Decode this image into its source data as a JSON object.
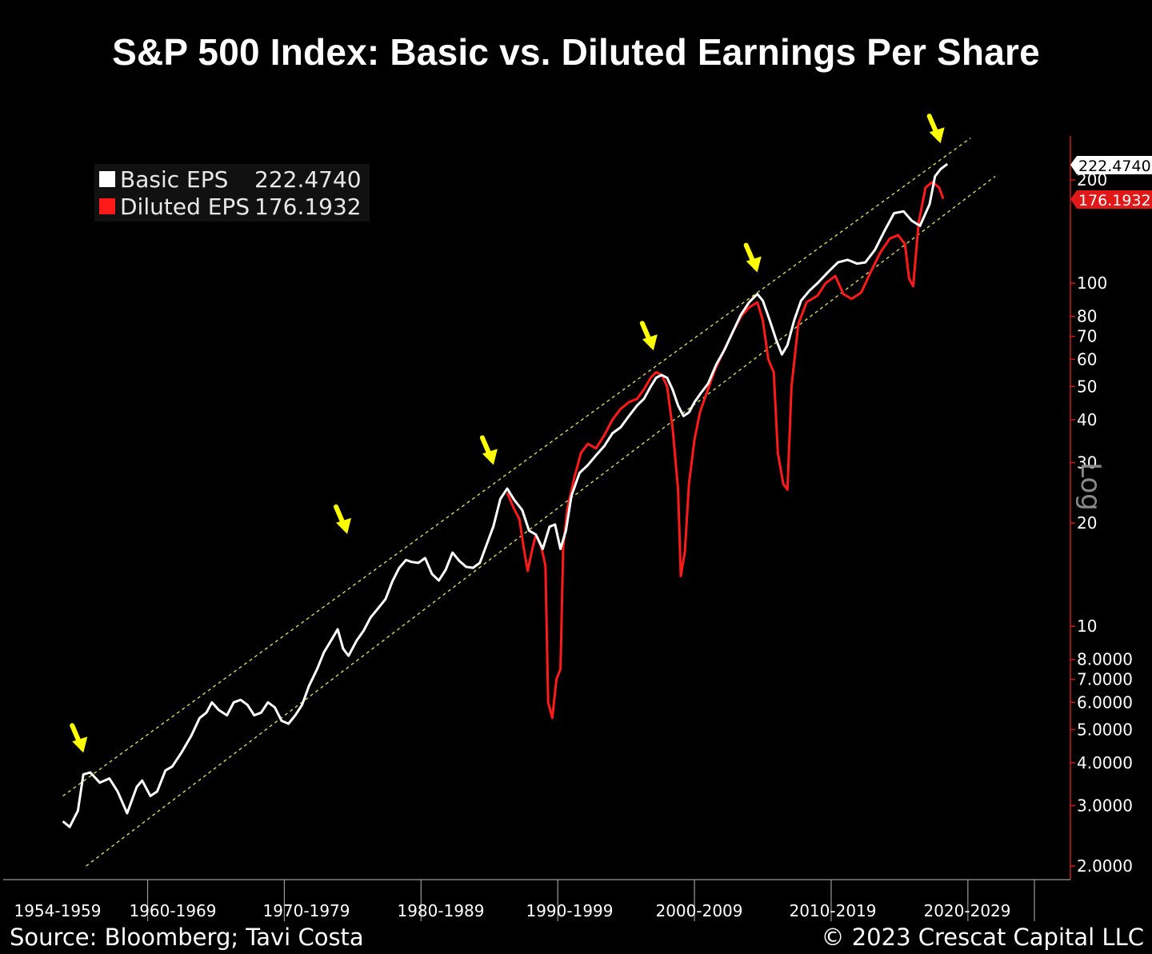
{
  "title": "S&P 500 Index: Basic vs. Diluted Earnings Per Share",
  "legend": [
    {
      "name": "Basic EPS",
      "value": "222.4740",
      "color": "#ffffff"
    },
    {
      "name": "Diluted EPS",
      "value": "176.1932",
      "color": "#ff1a1a"
    }
  ],
  "source": "Source: Bloomberg; Tavi Costa",
  "copyright": "© 2023 Crescat Capital LLC",
  "axis_scale_label": "Log",
  "last_value_tags": {
    "basic": "222.4740",
    "diluted": "176.1932"
  },
  "colors": {
    "background": "#000000",
    "basic": "#ffffff",
    "diluted": "#ff1a1a",
    "channel": "#d8d860",
    "arrow": "#ffff00",
    "axis": "#cc1a1a"
  },
  "chart_data": {
    "type": "line",
    "title": "S&P 500 Index: Basic vs. Diluted Earnings Per Share",
    "y_scale": "log",
    "ylim": [
      1.9,
      260
    ],
    "xlim": [
      1954,
      2030
    ],
    "x_tick_labels": [
      "1954-1959",
      "1960-1969",
      "1970-1979",
      "1980-1989",
      "1990-1999",
      "2000-2009",
      "2010-2019",
      "2020-2029"
    ],
    "y_ticks": [
      {
        "value": 2,
        "label": "2.0000"
      },
      {
        "value": 3,
        "label": "3.0000"
      },
      {
        "value": 4,
        "label": "4.0000"
      },
      {
        "value": 5,
        "label": "5.0000"
      },
      {
        "value": 6,
        "label": "6.0000"
      },
      {
        "value": 7,
        "label": "7.0000"
      },
      {
        "value": 8,
        "label": "8.0000"
      },
      {
        "value": 10,
        "label": "10"
      },
      {
        "value": 20,
        "label": "20"
      },
      {
        "value": 30,
        "label": "30"
      },
      {
        "value": 40,
        "label": "40"
      },
      {
        "value": 50,
        "label": "50"
      },
      {
        "value": 60,
        "label": "60"
      },
      {
        "value": 70,
        "label": "70"
      },
      {
        "value": 80,
        "label": "80"
      },
      {
        "value": 100,
        "label": "100"
      },
      {
        "value": 200,
        "label": "200"
      }
    ],
    "series": [
      {
        "name": "Basic EPS",
        "color": "#ffffff",
        "points": [
          [
            1953.8,
            2.7
          ],
          [
            1954.3,
            2.6
          ],
          [
            1954.9,
            2.9
          ],
          [
            1955.3,
            3.7
          ],
          [
            1955.8,
            3.75
          ],
          [
            1956.5,
            3.5
          ],
          [
            1957.2,
            3.6
          ],
          [
            1957.8,
            3.3
          ],
          [
            1958.5,
            2.85
          ],
          [
            1959.2,
            3.4
          ],
          [
            1959.6,
            3.55
          ],
          [
            1960.2,
            3.2
          ],
          [
            1960.7,
            3.3
          ],
          [
            1961.3,
            3.8
          ],
          [
            1961.8,
            3.9
          ],
          [
            1962.5,
            4.3
          ],
          [
            1963.2,
            4.8
          ],
          [
            1963.8,
            5.4
          ],
          [
            1964.3,
            5.6
          ],
          [
            1964.7,
            6.0
          ],
          [
            1965.2,
            5.7
          ],
          [
            1965.8,
            5.5
          ],
          [
            1966.3,
            6.0
          ],
          [
            1966.8,
            6.1
          ],
          [
            1967.3,
            5.9
          ],
          [
            1967.8,
            5.5
          ],
          [
            1968.3,
            5.6
          ],
          [
            1968.8,
            6.0
          ],
          [
            1969.3,
            5.8
          ],
          [
            1969.8,
            5.3
          ],
          [
            1970.3,
            5.2
          ],
          [
            1970.8,
            5.5
          ],
          [
            1971.3,
            5.9
          ],
          [
            1971.8,
            6.7
          ],
          [
            1972.4,
            7.5
          ],
          [
            1972.9,
            8.4
          ],
          [
            1973.5,
            9.2
          ],
          [
            1973.9,
            9.8
          ],
          [
            1974.3,
            8.6
          ],
          [
            1974.7,
            8.2
          ],
          [
            1975.3,
            9.1
          ],
          [
            1975.8,
            9.7
          ],
          [
            1976.3,
            10.6
          ],
          [
            1976.8,
            11.2
          ],
          [
            1977.4,
            12.0
          ],
          [
            1977.9,
            13.5
          ],
          [
            1978.4,
            14.8
          ],
          [
            1978.9,
            15.6
          ],
          [
            1979.3,
            15.4
          ],
          [
            1979.8,
            15.3
          ],
          [
            1980.3,
            15.8
          ],
          [
            1980.8,
            14.2
          ],
          [
            1981.3,
            13.6
          ],
          [
            1981.8,
            14.6
          ],
          [
            1982.3,
            16.4
          ],
          [
            1982.8,
            15.5
          ],
          [
            1983.3,
            14.9
          ],
          [
            1983.8,
            14.8
          ],
          [
            1984.3,
            15.3
          ],
          [
            1984.8,
            17.3
          ],
          [
            1985.3,
            19.6
          ],
          [
            1985.8,
            23.5
          ],
          [
            1986.3,
            25.2
          ],
          [
            1986.8,
            23.4
          ],
          [
            1987.4,
            21.8
          ],
          [
            1987.9,
            19.0
          ],
          [
            1988.4,
            18.5
          ],
          [
            1988.9,
            16.8
          ],
          [
            1989.4,
            19.5
          ],
          [
            1989.8,
            19.8
          ],
          [
            1990.2,
            16.8
          ],
          [
            1990.6,
            19.0
          ],
          [
            1991.0,
            24.0
          ],
          [
            1991.6,
            28.0
          ],
          [
            1992.2,
            29.5
          ],
          [
            1992.8,
            31.5
          ],
          [
            1993.4,
            33.5
          ],
          [
            1994.0,
            36.5
          ],
          [
            1994.6,
            38.0
          ],
          [
            1995.2,
            41.0
          ],
          [
            1995.8,
            44.0
          ],
          [
            1996.3,
            46.0
          ],
          [
            1996.8,
            50.0
          ],
          [
            1997.2,
            53.0
          ],
          [
            1997.6,
            54.0
          ],
          [
            1998.0,
            53.0
          ],
          [
            1998.4,
            49.0
          ],
          [
            1998.8,
            44.0
          ],
          [
            1999.2,
            41.0
          ],
          [
            1999.6,
            42.0
          ],
          [
            2000.0,
            45.0
          ],
          [
            2000.5,
            48.0
          ],
          [
            2001.0,
            51.0
          ],
          [
            2001.6,
            58.0
          ],
          [
            2002.2,
            64.0
          ],
          [
            2002.8,
            72.0
          ],
          [
            2003.4,
            81.0
          ],
          [
            2004.0,
            88.0
          ],
          [
            2004.6,
            93.0
          ],
          [
            2005.0,
            89.0
          ],
          [
            2005.5,
            78.0
          ],
          [
            2006.0,
            68.0
          ],
          [
            2006.4,
            62.0
          ],
          [
            2006.8,
            66.0
          ],
          [
            2007.3,
            78.0
          ],
          [
            2007.8,
            89.0
          ],
          [
            2008.4,
            95.0
          ],
          [
            2009.0,
            100.0
          ],
          [
            2009.8,
            108.0
          ],
          [
            2010.5,
            115.0
          ],
          [
            2011.2,
            117.0
          ],
          [
            2011.9,
            114.0
          ],
          [
            2012.5,
            115.0
          ],
          [
            2013.2,
            125.0
          ],
          [
            2013.9,
            142.0
          ],
          [
            2014.6,
            160.0
          ],
          [
            2015.3,
            162.0
          ],
          [
            2015.9,
            152.0
          ],
          [
            2016.5,
            147.0
          ],
          [
            2017.2,
            170.0
          ],
          [
            2017.6,
            205.0
          ],
          [
            2018.0,
            215.0
          ],
          [
            2018.5,
            222.5
          ]
        ]
      },
      {
        "name": "Diluted EPS",
        "color": "#ff1a1a",
        "points": [
          [
            1986.3,
            24.5
          ],
          [
            1986.8,
            22.0
          ],
          [
            1987.2,
            20.5
          ],
          [
            1987.5,
            17.0
          ],
          [
            1987.8,
            14.5
          ],
          [
            1988.1,
            16.5
          ],
          [
            1988.4,
            18.5
          ],
          [
            1988.8,
            17.0
          ],
          [
            1989.1,
            15.0
          ],
          [
            1989.3,
            6.0
          ],
          [
            1989.6,
            5.4
          ],
          [
            1989.9,
            7.0
          ],
          [
            1990.2,
            7.5
          ],
          [
            1990.4,
            17.0
          ],
          [
            1990.7,
            22.0
          ],
          [
            1991.2,
            27.0
          ],
          [
            1991.7,
            32.0
          ],
          [
            1992.2,
            34.0
          ],
          [
            1992.8,
            33.0
          ],
          [
            1993.4,
            36.0
          ],
          [
            1994.0,
            40.0
          ],
          [
            1994.6,
            43.0
          ],
          [
            1995.2,
            45.0
          ],
          [
            1995.8,
            46.0
          ],
          [
            1996.3,
            49.0
          ],
          [
            1996.8,
            53.0
          ],
          [
            1997.2,
            55.0
          ],
          [
            1997.6,
            54.0
          ],
          [
            1998.0,
            50.0
          ],
          [
            1998.4,
            38.0
          ],
          [
            1998.8,
            25.0
          ],
          [
            1999.0,
            14.0
          ],
          [
            1999.3,
            16.5
          ],
          [
            1999.6,
            26.0
          ],
          [
            2000.0,
            35.0
          ],
          [
            2000.4,
            42.0
          ],
          [
            2000.9,
            48.0
          ],
          [
            2001.5,
            56.0
          ],
          [
            2002.1,
            63.0
          ],
          [
            2002.8,
            72.0
          ],
          [
            2003.4,
            80.0
          ],
          [
            2004.0,
            85.0
          ],
          [
            2004.6,
            88.0
          ],
          [
            2005.0,
            78.0
          ],
          [
            2005.4,
            60.0
          ],
          [
            2005.8,
            55.0
          ],
          [
            2006.1,
            32.0
          ],
          [
            2006.5,
            26.0
          ],
          [
            2006.8,
            25.0
          ],
          [
            2007.1,
            50.0
          ],
          [
            2007.6,
            76.0
          ],
          [
            2008.2,
            88.0
          ],
          [
            2009.0,
            92.0
          ],
          [
            2009.6,
            100.0
          ],
          [
            2010.3,
            105.0
          ],
          [
            2010.9,
            93.0
          ],
          [
            2011.5,
            90.0
          ],
          [
            2012.2,
            94.0
          ],
          [
            2012.9,
            108.0
          ],
          [
            2013.6,
            123.0
          ],
          [
            2014.3,
            135.0
          ],
          [
            2014.9,
            138.0
          ],
          [
            2015.4,
            130.0
          ],
          [
            2015.7,
            103.0
          ],
          [
            2016.0,
            98.0
          ],
          [
            2016.4,
            150.0
          ],
          [
            2016.9,
            190.0
          ],
          [
            2017.4,
            197.0
          ],
          [
            2017.9,
            190.0
          ],
          [
            2018.2,
            176.2
          ]
        ]
      }
    ],
    "annotations": {
      "channel_lines": [
        {
          "from": [
            1953.8,
            3.2
          ],
          "to": [
            2020.2,
            265
          ]
        },
        {
          "from": [
            1955.5,
            2.0
          ],
          "to": [
            2022.0,
            205
          ]
        }
      ],
      "arrows": [
        [
          1955.3,
          4.1
        ],
        [
          1974.6,
          17.8
        ],
        [
          1985.3,
          28.3
        ],
        [
          1997.0,
          61
        ],
        [
          2004.6,
          103
        ],
        [
          2018.0,
          245
        ]
      ]
    }
  }
}
